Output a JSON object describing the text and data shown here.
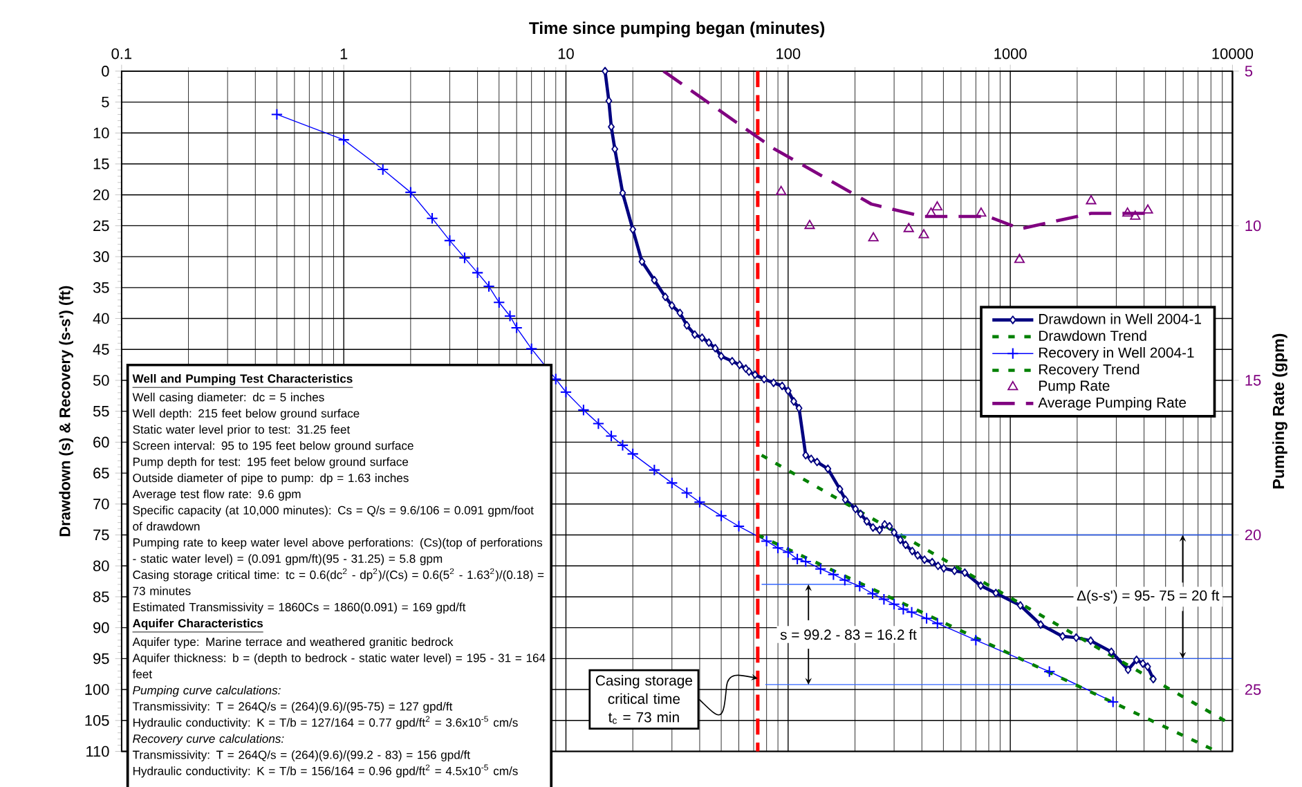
{
  "chart_data": {
    "type": "line",
    "xlabel": "Time since pumping began (minutes)",
    "ylabel": "Drawdown (s) & Recovery (s-s') (ft)",
    "y2label": "Pumping Rate (gpm)",
    "log": "x",
    "grid": true,
    "legend": "right",
    "xlim": [
      0.1,
      10000
    ],
    "xticks": [
      0.1,
      1,
      10,
      100,
      1000,
      10000
    ],
    "ylim": [
      110,
      0
    ],
    "yticks": [
      0,
      5,
      10,
      15,
      20,
      25,
      30,
      35,
      40,
      45,
      50,
      55,
      60,
      65,
      70,
      75,
      80,
      85,
      90,
      95,
      100,
      105,
      110
    ],
    "y2lim": [
      27,
      5
    ],
    "y2ticks": [
      5,
      10,
      15,
      20,
      25
    ],
    "series": [
      {
        "name": "Drawdown in Well 2004-1",
        "color": "#000080",
        "marker": "diamond",
        "line_style": "solid",
        "x": [
          15,
          15.6,
          16,
          16.6,
          18,
          20,
          22,
          25,
          28,
          30,
          32.6,
          35,
          38,
          41,
          44,
          47,
          50,
          56,
          60.5,
          64.5,
          66.7,
          71,
          78,
          86,
          94,
          100,
          106,
          112,
          120,
          127,
          135,
          151,
          171,
          181,
          201,
          212,
          226,
          241,
          258,
          272,
          286,
          300,
          320,
          338,
          362,
          383,
          411,
          445,
          473,
          502,
          561,
          624,
          736,
          861,
          1110,
          1370,
          1720,
          1980,
          2300,
          2850,
          3390,
          3700,
          3950,
          4150,
          4400
        ],
        "values": [
          0,
          4.8,
          9,
          12.6,
          19.7,
          25.6,
          30.8,
          33.8,
          36.5,
          37.9,
          39.1,
          41.1,
          42.6,
          43.1,
          43.9,
          44.8,
          46.1,
          46.9,
          47.5,
          48.1,
          48.6,
          49.1,
          49.8,
          50.4,
          50.9,
          51.7,
          53.4,
          54.5,
          62.1,
          62.7,
          63.2,
          64.3,
          67.6,
          69.3,
          70.8,
          71.6,
          72.8,
          73.8,
          74.2,
          73.3,
          73.6,
          74.6,
          75.8,
          76.6,
          77.6,
          78.3,
          79,
          79.4,
          80,
          80.4,
          80.8,
          81.1,
          83.2,
          84.4,
          86.4,
          89.5,
          91.4,
          91.6,
          92.1,
          93.9,
          96.8,
          95.2,
          95.8,
          96.3,
          98.3
        ]
      },
      {
        "name": "Drawdown Trend",
        "color": "#008000",
        "marker": "none",
        "line_style": "dotted",
        "x": [
          76,
          9300
        ],
        "values": [
          62.1,
          105.1
        ]
      },
      {
        "name": "Recovery in Well 2004-1",
        "color": "#0000ff",
        "marker": "cross",
        "line_style": "solid",
        "x": [
          0.5,
          1,
          1.5,
          2,
          2.5,
          3,
          3.5,
          4,
          4.5,
          5,
          5.6,
          6,
          7,
          9,
          10,
          12,
          14,
          16,
          18,
          20,
          25,
          30,
          35,
          40,
          50,
          60,
          80,
          90,
          100,
          110,
          120,
          140,
          160,
          180,
          210,
          240,
          270,
          300,
          330,
          360,
          420,
          470,
          700,
          1500,
          2900
        ],
        "values": [
          7,
          11.1,
          15.9,
          19.6,
          23.8,
          27.4,
          30.2,
          32.6,
          34.8,
          37.4,
          39.6,
          41.5,
          44.9,
          49.8,
          51.9,
          54.8,
          57,
          59,
          60.5,
          61.9,
          64.5,
          66.6,
          68.2,
          69.7,
          71.9,
          73.6,
          76,
          77.1,
          77.8,
          78.9,
          79.3,
          80.5,
          81.4,
          82.3,
          83.3,
          84.5,
          85.4,
          86.2,
          87,
          87.5,
          88.5,
          89.3,
          92,
          97.1,
          102
        ]
      },
      {
        "name": "Recovery Trend",
        "color": "#008000",
        "marker": "none",
        "line_style": "dotted",
        "x": [
          73,
          8500
        ],
        "values": [
          75,
          110
        ]
      },
      {
        "name": "Pump Rate",
        "type": "scatter",
        "axis": "y2",
        "color": "#800080",
        "marker": "triangle",
        "x": [
          93,
          125,
          242,
          349,
          408,
          440,
          469,
          739,
          1100,
          2310,
          3370,
          3650,
          4160
        ],
        "values": [
          8.9,
          10,
          10.4,
          10.1,
          10.3,
          9.6,
          9.4,
          9.6,
          11.1,
          9.2,
          9.6,
          9.7,
          9.5
        ]
      },
      {
        "name": "Average Pumping Rate",
        "axis": "y2",
        "color": "#800080",
        "marker": "none",
        "line_style": "dashed",
        "x": [
          27.5,
          86,
          237,
          403,
          794,
          1110,
          2310,
          4130
        ],
        "values": [
          5,
          7.5,
          9.3,
          9.7,
          9.7,
          10.1,
          9.6,
          9.6
        ]
      },
      {
        "color": "#3366ff",
        "marker": "none",
        "line_style": "solid",
        "x": [
          76,
          193
        ],
        "values": [
          83,
          83
        ]
      },
      {
        "color": "#3366ff",
        "marker": "none",
        "line_style": "solid",
        "x": [
          79,
          1950
        ],
        "values": [
          99.2,
          99.2
        ]
      },
      {
        "color": "#3366ff",
        "marker": "none",
        "line_style": "solid",
        "x": [
          310,
          10000
        ],
        "values": [
          75,
          75
        ]
      },
      {
        "color": "#3366ff",
        "marker": "none",
        "line_style": "solid",
        "x": [
          3565,
          10000
        ],
        "values": [
          95,
          95
        ]
      }
    ],
    "ref_lines": [
      {
        "axis": "x",
        "value": 73,
        "label": "Casing storage critical time t$_{c}$ = 73 min",
        "color": "#ff0000",
        "line_style": "dashed"
      }
    ],
    "annotations": [
      "Well and Pumping Test Characteristics",
      "Well casing diameter:  dc = 5 inches",
      "Well depth: 215 feet below ground surface",
      "Static water level prior to test: 31.25 feet",
      "Screen interval: 95 to 195 feet below ground surface",
      "Pump depth for test: 195 feet below ground surface",
      "Outside diameter of pipe to pump: dp = 1.63 inches",
      "Average test flow rate: 9.6 gpm",
      "Specific capacity (at 10,000 minutes): Cs = Q/s = 9.6/106 = 0.091 gpm/foot of drawdown",
      "Pumping rate to keep water level above perforations: (Cs)(top of perforations - static water level) = (0.091 gpm/ft)(95 - 31.25) = 5.8 gpm",
      "Casing storage critical time: tc = 0.6(dc$^{2}$ - dp$^{2}$)/(Cs) = 0.6(5$^{2}$ - 1.63$^{2}$)/(0.18) = 73 minutes",
      "Estimated Transmissivity = 1860Cs = 1860(0.091) = 169 gpd/ft",
      "Aquifer Characteristics",
      "Aquifer type: Marine terrace and weathered granitic bedrock",
      "Aquifer thickness: b = (depth to bedrock - static water level) = 195 - 31 = 164 feet",
      "Pumping curve calculations:",
      "Transmissivity: T = 264Q/s = (264)(9.6)/(95-75) = 127 gpd/ft",
      "Hydraulic conductivity: K = T/b = 127/164 = 0.77 gpd/ft$^{2}$ = 3.6x10$^{-5}$ cm/s",
      "Recovery curve calculations:",
      "Transmissivity: T = 264Q/s = (264)(9.6)/(99.2 - 83) = 156 gpd/ft",
      "Hydraulic conductivity: K = T/b = 156/164 = 0.96 gpd/ft$^{2}$ = 4.5x10$^{-5}$ cm/s",
      "s = 99.2 - 83 = 16.2 ft",
      "Δ(s-s') = 95- 75 = 20 ft"
    ]
  }
}
